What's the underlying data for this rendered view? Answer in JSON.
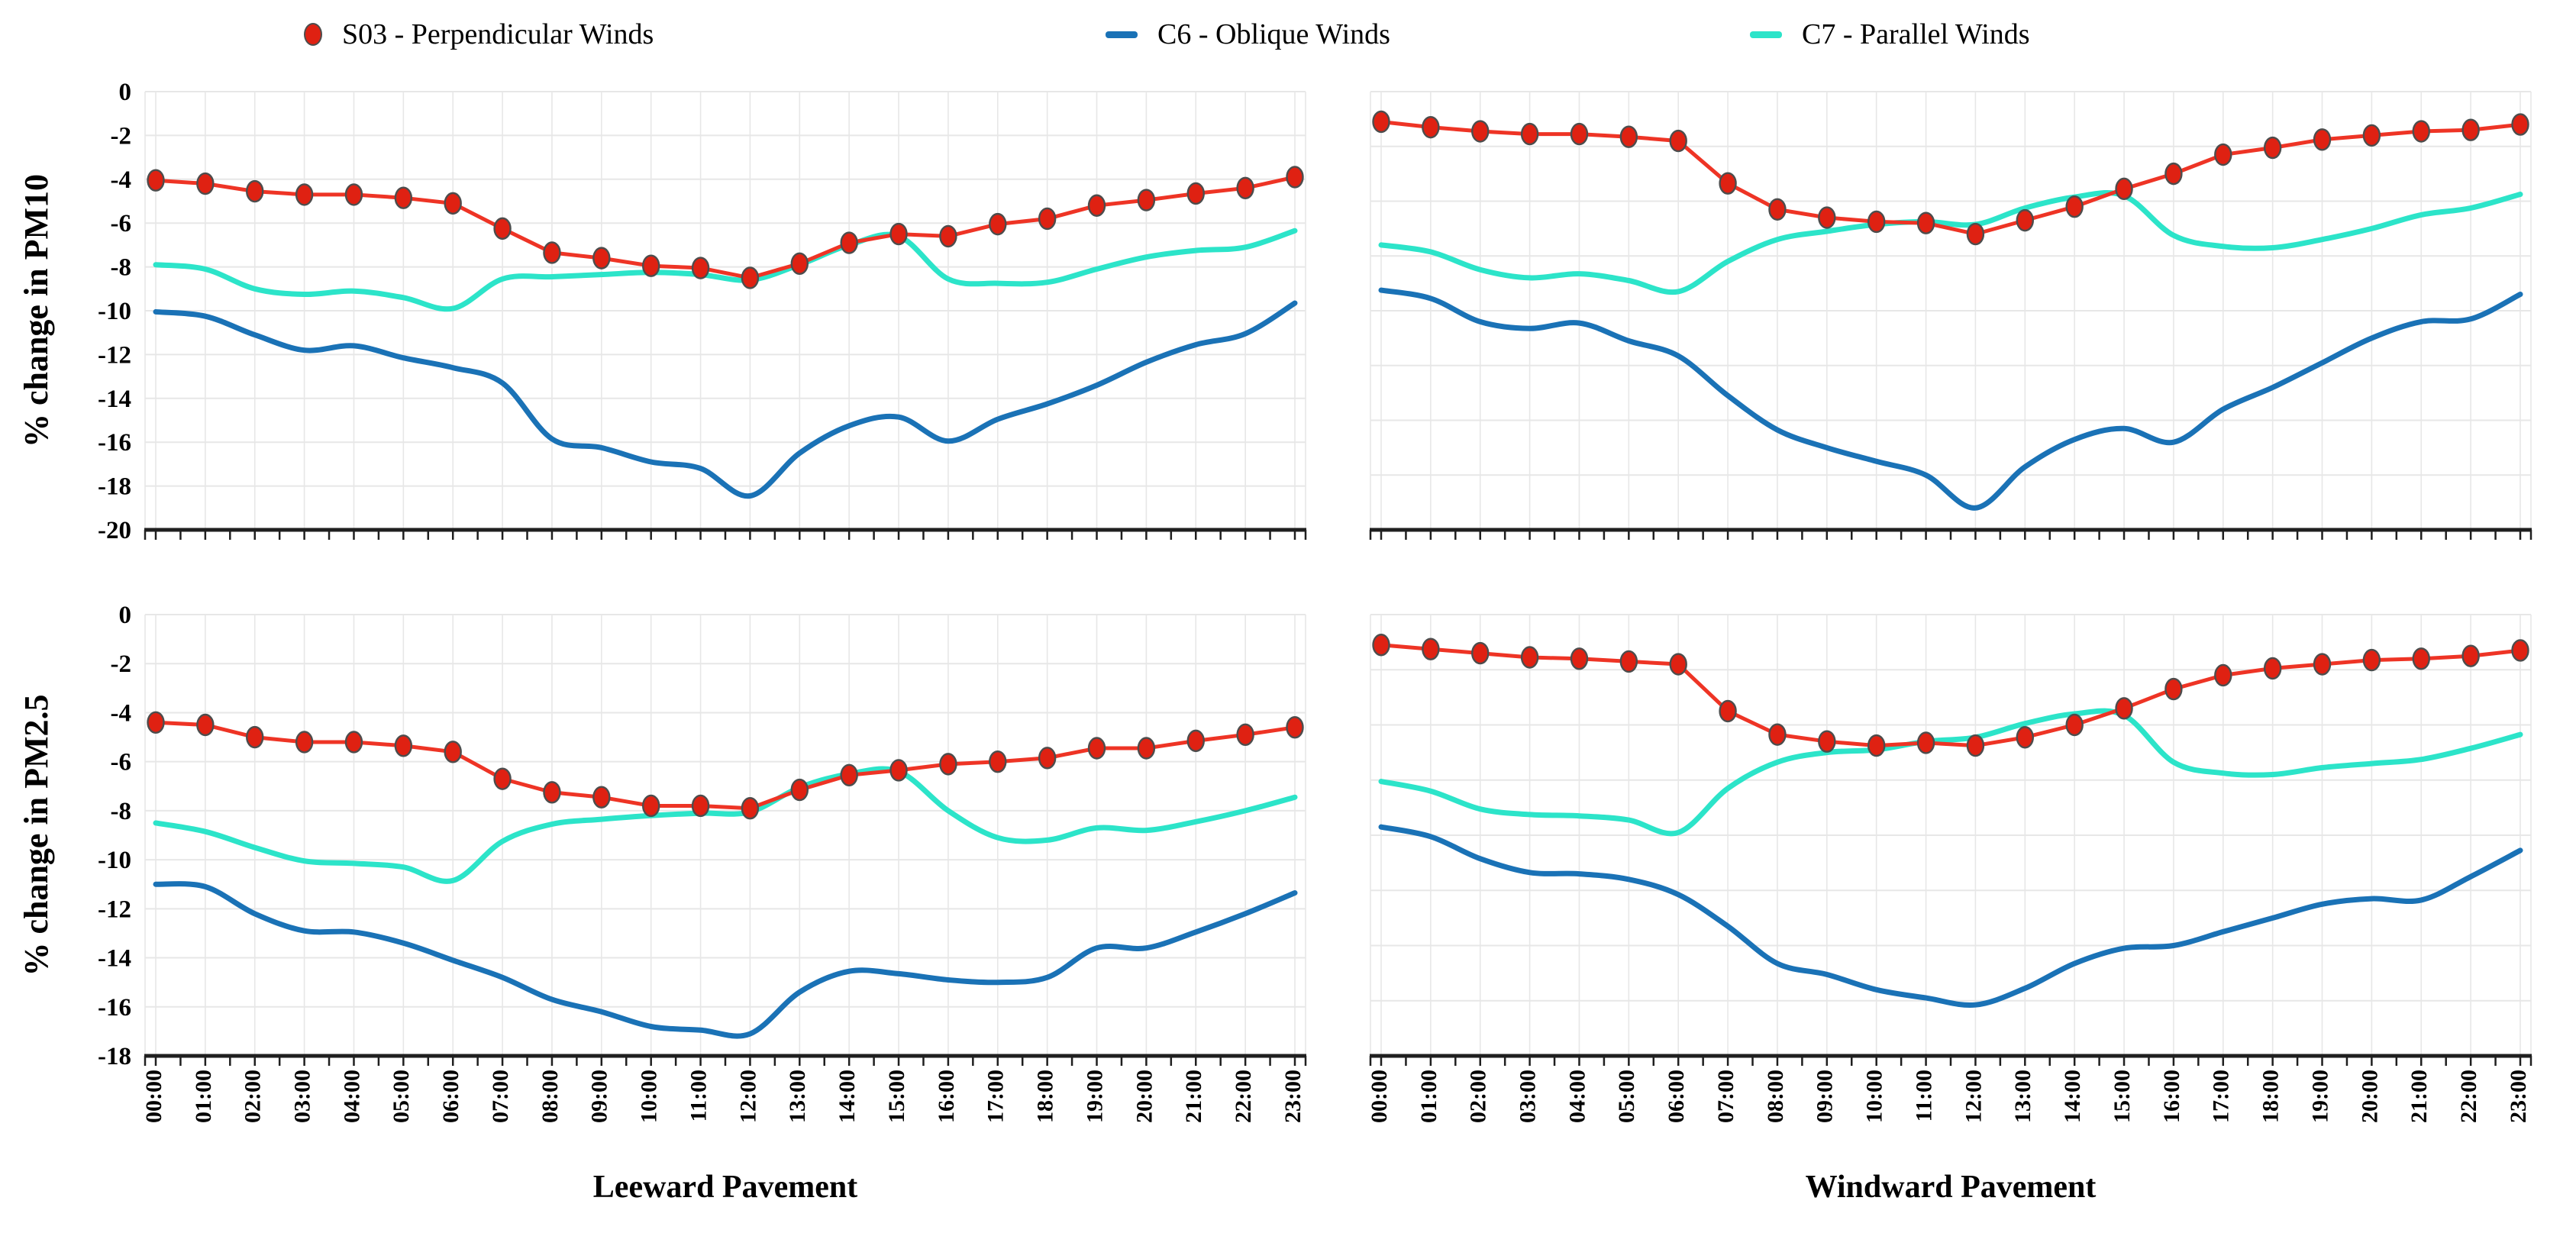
{
  "legend": {
    "items": [
      {
        "label": "S03 - Perpendicular Winds",
        "marker": "red-circle-marker-icon",
        "color": "#df2112"
      },
      {
        "label": "C6 - Oblique Winds",
        "marker": "blue-dash-marker-icon",
        "color": "#1a72b6"
      },
      {
        "label": "C7 - Parallel Winds",
        "marker": "cyan-dash-marker-icon",
        "color": "#2ce4c9"
      }
    ]
  },
  "colors": {
    "s03_marker": "#df2112",
    "s03_line": "#ee3425",
    "marker_outline": "#4d4d4d",
    "c6": "#1a72b6",
    "c7": "#2ce4c9",
    "grid": "#e7e7e7",
    "axis": "#1f1f1f",
    "text": "#000000"
  },
  "chart_data": {
    "type": "line",
    "x_categories": [
      "00:00",
      "01:00",
      "02:00",
      "03:00",
      "04:00",
      "05:00",
      "06:00",
      "07:00",
      "08:00",
      "09:00",
      "10:00",
      "11:00",
      "12:00",
      "13:00",
      "14:00",
      "15:00",
      "16:00",
      "17:00",
      "18:00",
      "19:00",
      "20:00",
      "21:00",
      "22:00",
      "23:00"
    ],
    "legend_position": "top",
    "grid": true,
    "charts": [
      {
        "id": "pm10-leeward",
        "row": 0,
        "col": 0,
        "y_title": "% change in PM10",
        "x_title": "",
        "ylim": [
          -20,
          0
        ],
        "ytick_step": 2,
        "show_ylabels": true,
        "show_xlabels": false,
        "series": [
          {
            "name": "S03 - Perpendicular Winds",
            "key": "s03",
            "values": [
              -4.05,
              -4.2,
              -4.55,
              -4.7,
              -4.7,
              -4.85,
              -5.1,
              -6.25,
              -7.35,
              -7.6,
              -7.95,
              -8.05,
              -8.5,
              -7.85,
              -6.9,
              -6.5,
              -6.6,
              -6.05,
              -5.8,
              -5.2,
              -4.95,
              -4.65,
              -4.4,
              -3.9
            ]
          },
          {
            "name": "C6 - Oblique Winds",
            "key": "c6",
            "values": [
              -10.05,
              -10.25,
              -11.1,
              -11.8,
              -11.6,
              -12.15,
              -12.6,
              -13.3,
              -15.85,
              -16.25,
              -16.9,
              -17.2,
              -18.45,
              -16.5,
              -15.25,
              -14.85,
              -15.95,
              -14.95,
              -14.25,
              -13.4,
              -12.35,
              -11.55,
              -11.05,
              -9.65
            ]
          },
          {
            "name": "C7 - Parallel Winds",
            "key": "c7",
            "values": [
              -7.9,
              -8.1,
              -9.0,
              -9.25,
              -9.1,
              -9.4,
              -9.9,
              -8.55,
              -8.45,
              -8.35,
              -8.25,
              -8.35,
              -8.6,
              -7.9,
              -7.0,
              -6.6,
              -8.55,
              -8.75,
              -8.7,
              -8.1,
              -7.55,
              -7.25,
              -7.1,
              -6.35
            ]
          }
        ]
      },
      {
        "id": "pm10-windward",
        "row": 0,
        "col": 1,
        "y_title": "",
        "x_title": "",
        "ylim": [
          -16,
          0
        ],
        "ytick_step": 2,
        "show_ylabels": false,
        "show_xlabels": false,
        "series": [
          {
            "name": "S03 - Perpendicular Winds",
            "key": "s03",
            "values": [
              -1.1,
              -1.3,
              -1.45,
              -1.55,
              -1.55,
              -1.65,
              -1.8,
              -3.35,
              -4.3,
              -4.6,
              -4.75,
              -4.8,
              -5.2,
              -4.7,
              -4.2,
              -3.55,
              -3.0,
              -2.3,
              -2.05,
              -1.75,
              -1.6,
              -1.45,
              -1.4,
              -1.2
            ]
          },
          {
            "name": "C6 - Oblique Winds",
            "key": "c6",
            "values": [
              -7.25,
              -7.55,
              -8.4,
              -8.65,
              -8.45,
              -9.1,
              -9.65,
              -11.1,
              -12.35,
              -13.0,
              -13.5,
              -14.0,
              -15.2,
              -13.7,
              -12.7,
              -12.3,
              -12.8,
              -11.6,
              -10.8,
              -9.9,
              -9.0,
              -8.4,
              -8.3,
              -7.4
            ]
          },
          {
            "name": "C7 - Parallel Winds",
            "key": "c7",
            "values": [
              -5.6,
              -5.85,
              -6.5,
              -6.8,
              -6.65,
              -6.9,
              -7.3,
              -6.2,
              -5.4,
              -5.1,
              -4.85,
              -4.75,
              -4.85,
              -4.25,
              -3.85,
              -3.8,
              -5.25,
              -5.65,
              -5.7,
              -5.4,
              -5.0,
              -4.5,
              -4.25,
              -3.75
            ]
          }
        ]
      },
      {
        "id": "pm25-leeward",
        "row": 1,
        "col": 0,
        "y_title": "% change in PM2.5",
        "x_title": "Leeward Pavement",
        "ylim": [
          -18,
          0
        ],
        "ytick_step": 2,
        "show_ylabels": true,
        "show_xlabels": true,
        "series": [
          {
            "name": "S03 - Perpendicular Winds",
            "key": "s03",
            "values": [
              -4.4,
              -4.5,
              -5.0,
              -5.2,
              -5.2,
              -5.35,
              -5.6,
              -6.7,
              -7.25,
              -7.45,
              -7.8,
              -7.8,
              -7.9,
              -7.15,
              -6.55,
              -6.35,
              -6.1,
              -6.0,
              -5.85,
              -5.45,
              -5.45,
              -5.15,
              -4.9,
              -4.6
            ]
          },
          {
            "name": "C6 - Oblique Winds",
            "key": "c6",
            "values": [
              -11.0,
              -11.1,
              -12.2,
              -12.9,
              -12.95,
              -13.4,
              -14.1,
              -14.8,
              -15.7,
              -16.2,
              -16.8,
              -16.95,
              -17.1,
              -15.4,
              -14.55,
              -14.65,
              -14.9,
              -15.0,
              -14.8,
              -13.6,
              -13.6,
              -12.95,
              -12.2,
              -11.35
            ]
          },
          {
            "name": "C7 - Parallel Winds",
            "key": "c7",
            "values": [
              -8.5,
              -8.85,
              -9.5,
              -10.05,
              -10.15,
              -10.3,
              -10.85,
              -9.25,
              -8.55,
              -8.35,
              -8.2,
              -8.1,
              -8.05,
              -7.05,
              -6.5,
              -6.4,
              -8.0,
              -9.1,
              -9.2,
              -8.7,
              -8.8,
              -8.45,
              -8.0,
              -7.45
            ]
          }
        ]
      },
      {
        "id": "pm25-windward",
        "row": 1,
        "col": 1,
        "y_title": "",
        "x_title": "Windward Pavement",
        "ylim": [
          -16,
          0
        ],
        "ytick_step": 2,
        "show_ylabels": false,
        "show_xlabels": true,
        "series": [
          {
            "name": "S03 - Perpendicular Winds",
            "key": "s03",
            "values": [
              -1.1,
              -1.25,
              -1.4,
              -1.55,
              -1.6,
              -1.7,
              -1.8,
              -3.5,
              -4.35,
              -4.6,
              -4.75,
              -4.65,
              -4.75,
              -4.45,
              -4.0,
              -3.4,
              -2.7,
              -2.2,
              -1.95,
              -1.8,
              -1.65,
              -1.6,
              -1.5,
              -1.3
            ]
          },
          {
            "name": "C6 - Oblique Winds",
            "key": "c6",
            "values": [
              -7.7,
              -8.05,
              -8.85,
              -9.35,
              -9.4,
              -9.6,
              -10.15,
              -11.3,
              -12.65,
              -13.05,
              -13.6,
              -13.9,
              -14.15,
              -13.55,
              -12.65,
              -12.1,
              -12.0,
              -11.5,
              -11.0,
              -10.5,
              -10.3,
              -10.35,
              -9.5,
              -8.55
            ]
          },
          {
            "name": "C7 - Parallel Winds",
            "key": "c7",
            "values": [
              -6.05,
              -6.4,
              -7.05,
              -7.25,
              -7.3,
              -7.45,
              -7.9,
              -6.3,
              -5.35,
              -5.0,
              -4.9,
              -4.6,
              -4.45,
              -3.95,
              -3.6,
              -3.65,
              -5.35,
              -5.75,
              -5.8,
              -5.55,
              -5.4,
              -5.25,
              -4.85,
              -4.35
            ]
          }
        ]
      }
    ]
  }
}
